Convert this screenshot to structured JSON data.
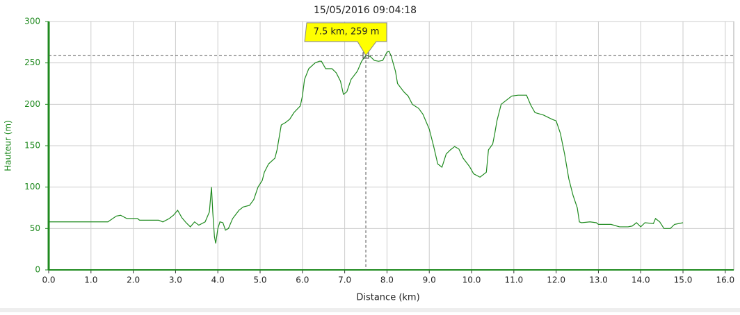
{
  "chart_data": {
    "type": "line",
    "title": "15/05/2016 09:04:18",
    "x_label": "Distance (km)",
    "y_label": "Hauteur (m)",
    "x": [
      0,
      1.4,
      1.6,
      1.7,
      1.85,
      2.1,
      2.15,
      2.6,
      2.7,
      2.85,
      2.95,
      3.05,
      3.15,
      3.25,
      3.35,
      3.45,
      3.55,
      3.7,
      3.8,
      3.85,
      3.88,
      3.92,
      3.95,
      4.0,
      4.05,
      4.12,
      4.18,
      4.25,
      4.35,
      4.5,
      4.6,
      4.75,
      4.85,
      4.95,
      5.05,
      5.1,
      5.2,
      5.35,
      5.4,
      5.5,
      5.6,
      5.7,
      5.8,
      5.95,
      6.0,
      6.05,
      6.15,
      6.3,
      6.4,
      6.45,
      6.55,
      6.7,
      6.8,
      6.9,
      6.97,
      7.05,
      7.15,
      7.3,
      7.4,
      7.5,
      7.6,
      7.7,
      7.8,
      7.9,
      8.0,
      8.05,
      8.1,
      8.2,
      8.25,
      8.4,
      8.5,
      8.6,
      8.75,
      8.85,
      9.0,
      9.1,
      9.2,
      9.3,
      9.4,
      9.5,
      9.6,
      9.7,
      9.8,
      9.95,
      10.05,
      10.2,
      10.35,
      10.4,
      10.5,
      10.55,
      10.6,
      10.7,
      10.85,
      10.95,
      11.1,
      11.3,
      11.4,
      11.5,
      11.7,
      11.9,
      12.0,
      12.1,
      12.2,
      12.3,
      12.4,
      12.5,
      12.55,
      12.6,
      12.8,
      12.95,
      13.0,
      13.3,
      13.5,
      13.7,
      13.8,
      13.9,
      14.0,
      14.1,
      14.3,
      14.35,
      14.45,
      14.55,
      14.7,
      14.8,
      15.0
    ],
    "series": [
      {
        "color": "#1f8a1f",
        "values": [
          58,
          58,
          65,
          66,
          62,
          62,
          60,
          60,
          58,
          62,
          66,
          72,
          63,
          57,
          52,
          58,
          54,
          58,
          70,
          100,
          70,
          40,
          32,
          50,
          58,
          57,
          48,
          50,
          62,
          72,
          76,
          78,
          85,
          100,
          108,
          118,
          128,
          135,
          145,
          175,
          178,
          182,
          190,
          198,
          210,
          230,
          243,
          250,
          252,
          252,
          243,
          243,
          238,
          228,
          212,
          215,
          230,
          240,
          252,
          259,
          258,
          253,
          252,
          253,
          263,
          264,
          258,
          240,
          225,
          215,
          210,
          200,
          195,
          188,
          170,
          150,
          128,
          124,
          140,
          145,
          149,
          146,
          135,
          125,
          116,
          112,
          118,
          145,
          152,
          165,
          180,
          200,
          206,
          210,
          211,
          211,
          199,
          190,
          187,
          182,
          180,
          165,
          140,
          110,
          90,
          75,
          58,
          57,
          58,
          57,
          55,
          55,
          52,
          52,
          53,
          57,
          52,
          57,
          56,
          62,
          58,
          50,
          50,
          55,
          57
        ]
      }
    ],
    "xlim": [
      0,
      16.2
    ],
    "ylim": [
      0,
      300
    ],
    "xticks": [
      {
        "value": 0,
        "label": "0.0"
      },
      {
        "value": 1,
        "label": "1.0"
      },
      {
        "value": 2,
        "label": "2.0"
      },
      {
        "value": 3,
        "label": "3.0"
      },
      {
        "value": 4,
        "label": "4.0"
      },
      {
        "value": 5,
        "label": "5.0"
      },
      {
        "value": 6,
        "label": "6.0"
      },
      {
        "value": 7,
        "label": "7.0"
      },
      {
        "value": 8,
        "label": "8.0"
      },
      {
        "value": 9,
        "label": "9.0"
      },
      {
        "value": 10,
        "label": "10.0"
      },
      {
        "value": 11,
        "label": "11.0"
      },
      {
        "value": 12,
        "label": "12.0"
      },
      {
        "value": 13,
        "label": "13.0"
      },
      {
        "value": 14,
        "label": "14.0"
      },
      {
        "value": 15,
        "label": "15.0"
      },
      {
        "value": 16,
        "label": "16.0"
      }
    ],
    "yticks": [
      0,
      50,
      100,
      150,
      200,
      250,
      300
    ],
    "grid": true,
    "annotation": {
      "text": "7.5 km, 259 m",
      "x": 7.5,
      "y": 259
    }
  }
}
